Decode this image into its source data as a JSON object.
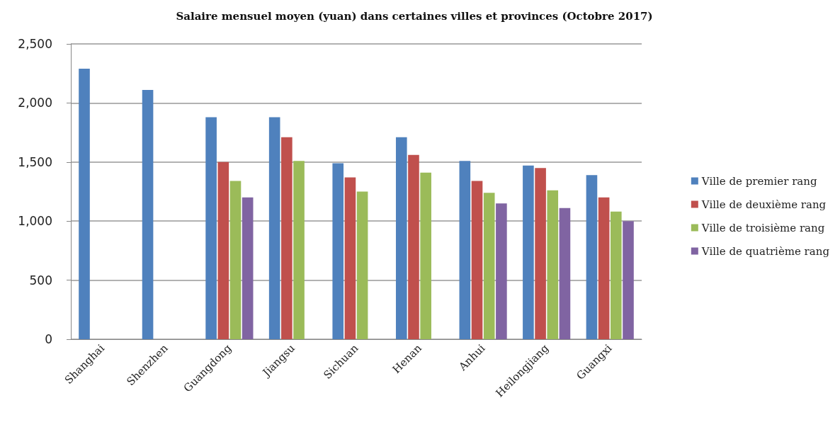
{
  "chart_data": {
    "type": "bar",
    "title": "Salaire mensuel moyen (yuan) dans certaines villes et provinces (Octobre 2017)",
    "categories": [
      "Shanghai",
      "Shenzhen",
      "Guangdong",
      "Jiangsu",
      "Sichuan",
      "Henan",
      "Anhui",
      "Heilongjiang",
      "Guangxi"
    ],
    "series": [
      {
        "name": "Ville de premier rang",
        "color": "#4f81bd",
        "values": [
          2290,
          2110,
          1880,
          1880,
          1490,
          1710,
          1510,
          1470,
          1390
        ]
      },
      {
        "name": "Ville de deuxième rang",
        "color": "#c0504d",
        "values": [
          null,
          null,
          1500,
          1710,
          1370,
          1560,
          1340,
          1450,
          1200
        ]
      },
      {
        "name": "Ville de troisième rang",
        "color": "#9bbb59",
        "values": [
          null,
          null,
          1340,
          1510,
          1250,
          1410,
          1240,
          1260,
          1080
        ]
      },
      {
        "name": "Ville de quatrième rang",
        "color": "#8064a2",
        "values": [
          null,
          null,
          1200,
          null,
          null,
          null,
          1150,
          1110,
          1000
        ]
      }
    ],
    "ylim": [
      0,
      2500
    ],
    "yticks": [
      {
        "value": 0,
        "label": "0"
      },
      {
        "value": 500,
        "label": "500"
      },
      {
        "value": 1000,
        "label": "1,000"
      },
      {
        "value": 1500,
        "label": "1,500"
      },
      {
        "value": 2000,
        "label": "2,000"
      },
      {
        "value": 2500,
        "label": "2,500"
      }
    ],
    "grid": "y",
    "legend": "right"
  }
}
